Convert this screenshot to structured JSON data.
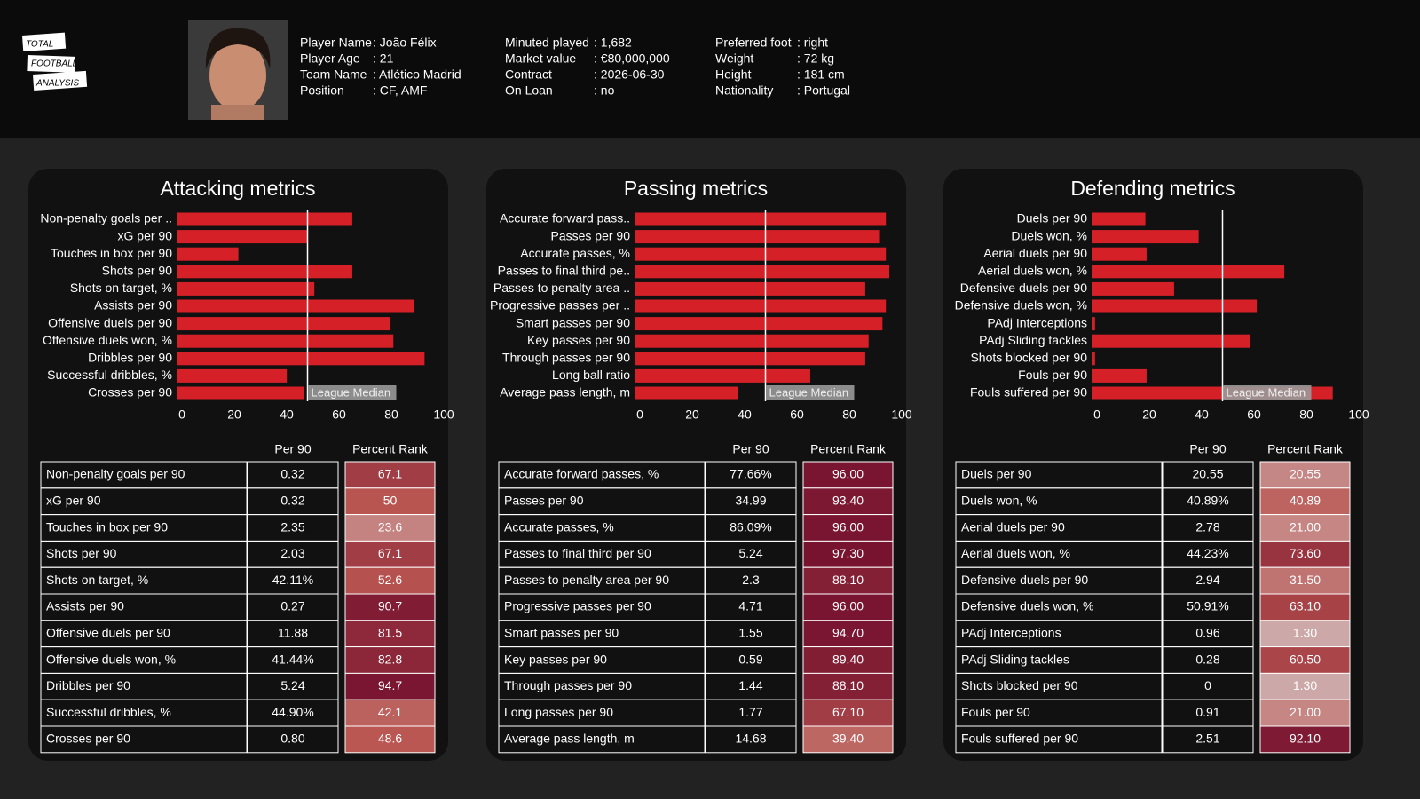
{
  "header": {
    "logo": [
      "TOTAL",
      "FOOTBALL",
      "ANALYSIS"
    ],
    "info": [
      [
        [
          "Player Name",
          ": João Félix"
        ],
        [
          "Player Age",
          ": 21"
        ],
        [
          "Team Name",
          ": Atlético Madrid"
        ],
        [
          "Position",
          ": CF, AMF"
        ]
      ],
      [
        [
          "Minuted played",
          ": 1,682"
        ],
        [
          "Market value",
          ": €80,000,000"
        ],
        [
          "Contract",
          ": 2026-06-30"
        ],
        [
          "On Loan",
          ": no"
        ]
      ],
      [
        [
          "Preferred foot",
          ": right"
        ],
        [
          "Weight",
          ": 72 kg"
        ],
        [
          "Height",
          ": 181 cm"
        ],
        [
          "Nationality",
          ": Portugal"
        ]
      ]
    ]
  },
  "chart_data": [
    {
      "type": "bar",
      "title": "Attacking metrics",
      "color": "#d62028",
      "categories": [
        "Non-penalty goals per ..",
        "xG per 90",
        "Touches in box per 90",
        "Shots per 90",
        "Shots on target, %",
        "Assists per 90",
        "Offensive duels per 90",
        "Offensive duels won, %",
        "Dribbles per 90",
        "Successful dribbles, %",
        "Crosses per 90"
      ],
      "values": [
        67.1,
        50,
        23.6,
        67.1,
        52.6,
        90.7,
        81.5,
        82.8,
        94.7,
        42.1,
        48.6
      ],
      "xlim": [
        0,
        100
      ],
      "xticks": [
        0,
        20,
        40,
        60,
        80,
        100
      ],
      "median": 50,
      "median_label": "League Median"
    },
    {
      "type": "bar",
      "title": "Passing metrics",
      "color": "#d62028",
      "categories": [
        "Accurate forward pass..",
        "Passes per 90",
        "Accurate passes, %",
        "Passes to final third pe..",
        "Passes to penalty area ..",
        "Progressive passes per ..",
        "Smart passes per 90",
        "Key passes per 90",
        "Through passes per 90",
        "Long ball ratio",
        "Average pass length, m"
      ],
      "values": [
        96.0,
        93.4,
        96.0,
        97.3,
        88.1,
        96.0,
        94.7,
        89.4,
        88.1,
        67.1,
        39.4
      ],
      "xlim": [
        0,
        100
      ],
      "xticks": [
        0,
        20,
        40,
        60,
        80,
        100
      ],
      "median": 50,
      "median_label": "League Median"
    },
    {
      "type": "bar",
      "title": "Defending metrics",
      "color": "#d62028",
      "categories": [
        "Duels per 90",
        "Duels won, %",
        "Aerial duels per 90",
        "Aerial duels won, %",
        "Defensive duels per 90",
        "Defensive duels won, %",
        "PAdj Interceptions",
        "PAdj Sliding tackles",
        "Shots blocked per 90",
        "Fouls per 90",
        "Fouls suffered per 90"
      ],
      "values": [
        20.55,
        40.89,
        21.0,
        73.6,
        31.5,
        63.1,
        1.3,
        60.5,
        1.3,
        21.0,
        92.1
      ],
      "xlim": [
        0,
        100
      ],
      "xticks": [
        0,
        20,
        40,
        60,
        80,
        100
      ],
      "median": 50,
      "median_label": "League Median"
    }
  ],
  "tables": [
    {
      "columns": [
        "Per 90",
        "Percent Rank"
      ],
      "rows": [
        [
          "Non-penalty goals per 90",
          "0.32",
          "67.1"
        ],
        [
          "xG per 90",
          "0.32",
          "50"
        ],
        [
          "Touches in box per 90",
          "2.35",
          "23.6"
        ],
        [
          "Shots per 90",
          "2.03",
          "67.1"
        ],
        [
          "Shots on target, %",
          "42.11%",
          "52.6"
        ],
        [
          "Assists per 90",
          "0.27",
          "90.7"
        ],
        [
          "Offensive duels per 90",
          "11.88",
          "81.5"
        ],
        [
          "Offensive duels won, %",
          "41.44%",
          "82.8"
        ],
        [
          "Dribbles per 90",
          "5.24",
          "94.7"
        ],
        [
          "Successful dribbles, %",
          "44.90%",
          "42.1"
        ],
        [
          "Crosses per 90",
          "0.80",
          "48.6"
        ]
      ]
    },
    {
      "columns": [
        "Per 90",
        "Percent Rank"
      ],
      "rows": [
        [
          "Accurate forward passes, %",
          "77.66%",
          "96.00"
        ],
        [
          "Passes per 90",
          "34.99",
          "93.40"
        ],
        [
          "Accurate passes, %",
          "86.09%",
          "96.00"
        ],
        [
          "Passes to final third per 90",
          "5.24",
          "97.30"
        ],
        [
          "Passes to penalty area per 90",
          "2.3",
          "88.10"
        ],
        [
          "Progressive passes per 90",
          "4.71",
          "96.00"
        ],
        [
          "Smart passes per 90",
          "1.55",
          "94.70"
        ],
        [
          "Key passes per 90",
          "0.59",
          "89.40"
        ],
        [
          "Through passes per 90",
          "1.44",
          "88.10"
        ],
        [
          "Long passes per 90",
          "1.77",
          "67.10"
        ],
        [
          "Average pass length, m",
          "14.68",
          "39.40"
        ]
      ]
    },
    {
      "columns": [
        "Per 90",
        "Percent Rank"
      ],
      "rows": [
        [
          "Duels per 90",
          "20.55",
          "20.55"
        ],
        [
          "Duels won, %",
          "40.89%",
          "40.89"
        ],
        [
          "Aerial duels per 90",
          "2.78",
          "21.00"
        ],
        [
          "Aerial duels won, %",
          "44.23%",
          "73.60"
        ],
        [
          "Defensive duels per 90",
          "2.94",
          "31.50"
        ],
        [
          "Defensive duels won, %",
          "50.91%",
          "63.10"
        ],
        [
          "PAdj Interceptions",
          "0.96",
          "1.30"
        ],
        [
          "PAdj Sliding tackles",
          "0.28",
          "60.50"
        ],
        [
          "Shots blocked per 90",
          "0",
          "1.30"
        ],
        [
          "Fouls per 90",
          "0.91",
          "21.00"
        ],
        [
          "Fouls suffered per 90",
          "2.51",
          "92.10"
        ]
      ]
    }
  ]
}
